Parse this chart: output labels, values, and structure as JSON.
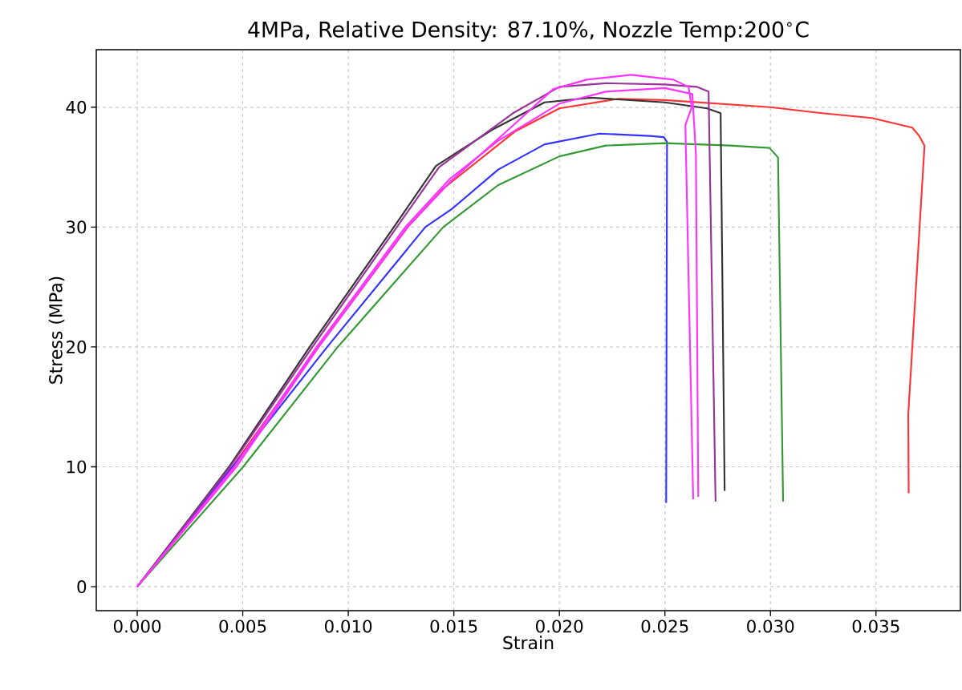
{
  "chart_data": {
    "type": "line",
    "title": "4MPa, Relative Density: 87.10%, Nozzle Temp:200$^{∘}$C",
    "xlabel": "Strain",
    "ylabel": "Stress (MPa)",
    "xlim": [
      -0.00194,
      0.039
    ],
    "ylim": [
      -2.0,
      44.8
    ],
    "xticks": [
      {
        "value": 0,
        "label": "0.000"
      },
      {
        "value": 0.005,
        "label": "0.005"
      },
      {
        "value": 0.01,
        "label": "0.010"
      },
      {
        "value": 0.015,
        "label": "0.015"
      },
      {
        "value": 0.02,
        "label": "0.020"
      },
      {
        "value": 0.025,
        "label": "0.025"
      },
      {
        "value": 0.03,
        "label": "0.030"
      },
      {
        "value": 0.035,
        "label": "0.035"
      }
    ],
    "yticks": [
      0,
      10,
      20,
      30,
      40
    ],
    "grid": true,
    "series": [
      {
        "color": "#ff3333",
        "x": [
          0,
          0.0045,
          0.00859,
          0.01282,
          0.01449,
          0.01792,
          0.02,
          0.0228,
          0.025,
          0.03,
          0.03246,
          0.0348,
          0.03672,
          0.03705,
          0.0373,
          0.03653,
          0.03655
        ],
        "values": [
          0,
          10,
          20,
          30,
          33.2,
          38.0,
          39.9,
          40.7,
          40.6,
          40.0,
          39.5,
          39.1,
          38.3,
          37.6,
          36.8,
          14.4,
          7.8
        ]
      },
      {
        "color": "#3333ff",
        "x": [
          0,
          0.00452,
          0.009,
          0.01365,
          0.0149,
          0.0171,
          0.0193,
          0.0219,
          0.0243,
          0.02495,
          0.0251,
          0.02506
        ],
        "values": [
          0,
          10,
          20,
          30,
          31.5,
          34.8,
          36.9,
          37.8,
          37.6,
          37.5,
          37.1,
          7.0
        ]
      },
      {
        "color": "#339933",
        "x": [
          0,
          0.00502,
          0.0095,
          0.0145,
          0.0171,
          0.02,
          0.0222,
          0.025,
          0.0281,
          0.02996,
          0.03036,
          0.0306
        ],
        "values": [
          0,
          10,
          20,
          30,
          33.5,
          35.9,
          36.8,
          37.0,
          36.8,
          36.6,
          35.8,
          7.1
        ]
      },
      {
        "color": "#333333",
        "x": [
          0,
          0.00435,
          0.00817,
          0.01216,
          0.01415,
          0.0169,
          0.0193,
          0.0215,
          0.025,
          0.027,
          0.02764,
          0.02783
        ],
        "values": [
          0,
          10,
          20,
          30,
          35.1,
          38.2,
          40.4,
          40.8,
          40.4,
          39.9,
          39.5,
          8.0
        ]
      },
      {
        "color": "#993399",
        "x": [
          0,
          0.0044,
          0.0083,
          0.0123,
          0.0143,
          0.0178,
          0.02,
          0.0222,
          0.025,
          0.0265,
          0.02707,
          0.0274
        ],
        "values": [
          0,
          10,
          20,
          30,
          35.0,
          39.5,
          41.7,
          42.0,
          41.9,
          41.7,
          41.3,
          7.1
        ]
      },
      {
        "color": "#ff33ff",
        "x": [
          0,
          0.0047,
          0.0086,
          0.0128,
          0.0149,
          0.0175,
          0.0197,
          0.0213,
          0.0234,
          0.0254,
          0.02612,
          0.02627,
          0.02597,
          0.02634
        ],
        "values": [
          0,
          10,
          20,
          30,
          33.9,
          38.0,
          41.5,
          42.3,
          42.7,
          42.3,
          41.7,
          40.0,
          38.5,
          7.3
        ]
      },
      {
        "color": "#ff33ff",
        "x": [
          0,
          0.0046,
          0.0085,
          0.0127,
          0.0148,
          0.0171,
          0.02,
          0.0222,
          0.025,
          0.0263,
          0.02647,
          0.02658
        ],
        "values": [
          0,
          10,
          20,
          30,
          34.0,
          37.2,
          40.3,
          41.3,
          41.6,
          41.1,
          36.1,
          7.5
        ]
      }
    ]
  }
}
